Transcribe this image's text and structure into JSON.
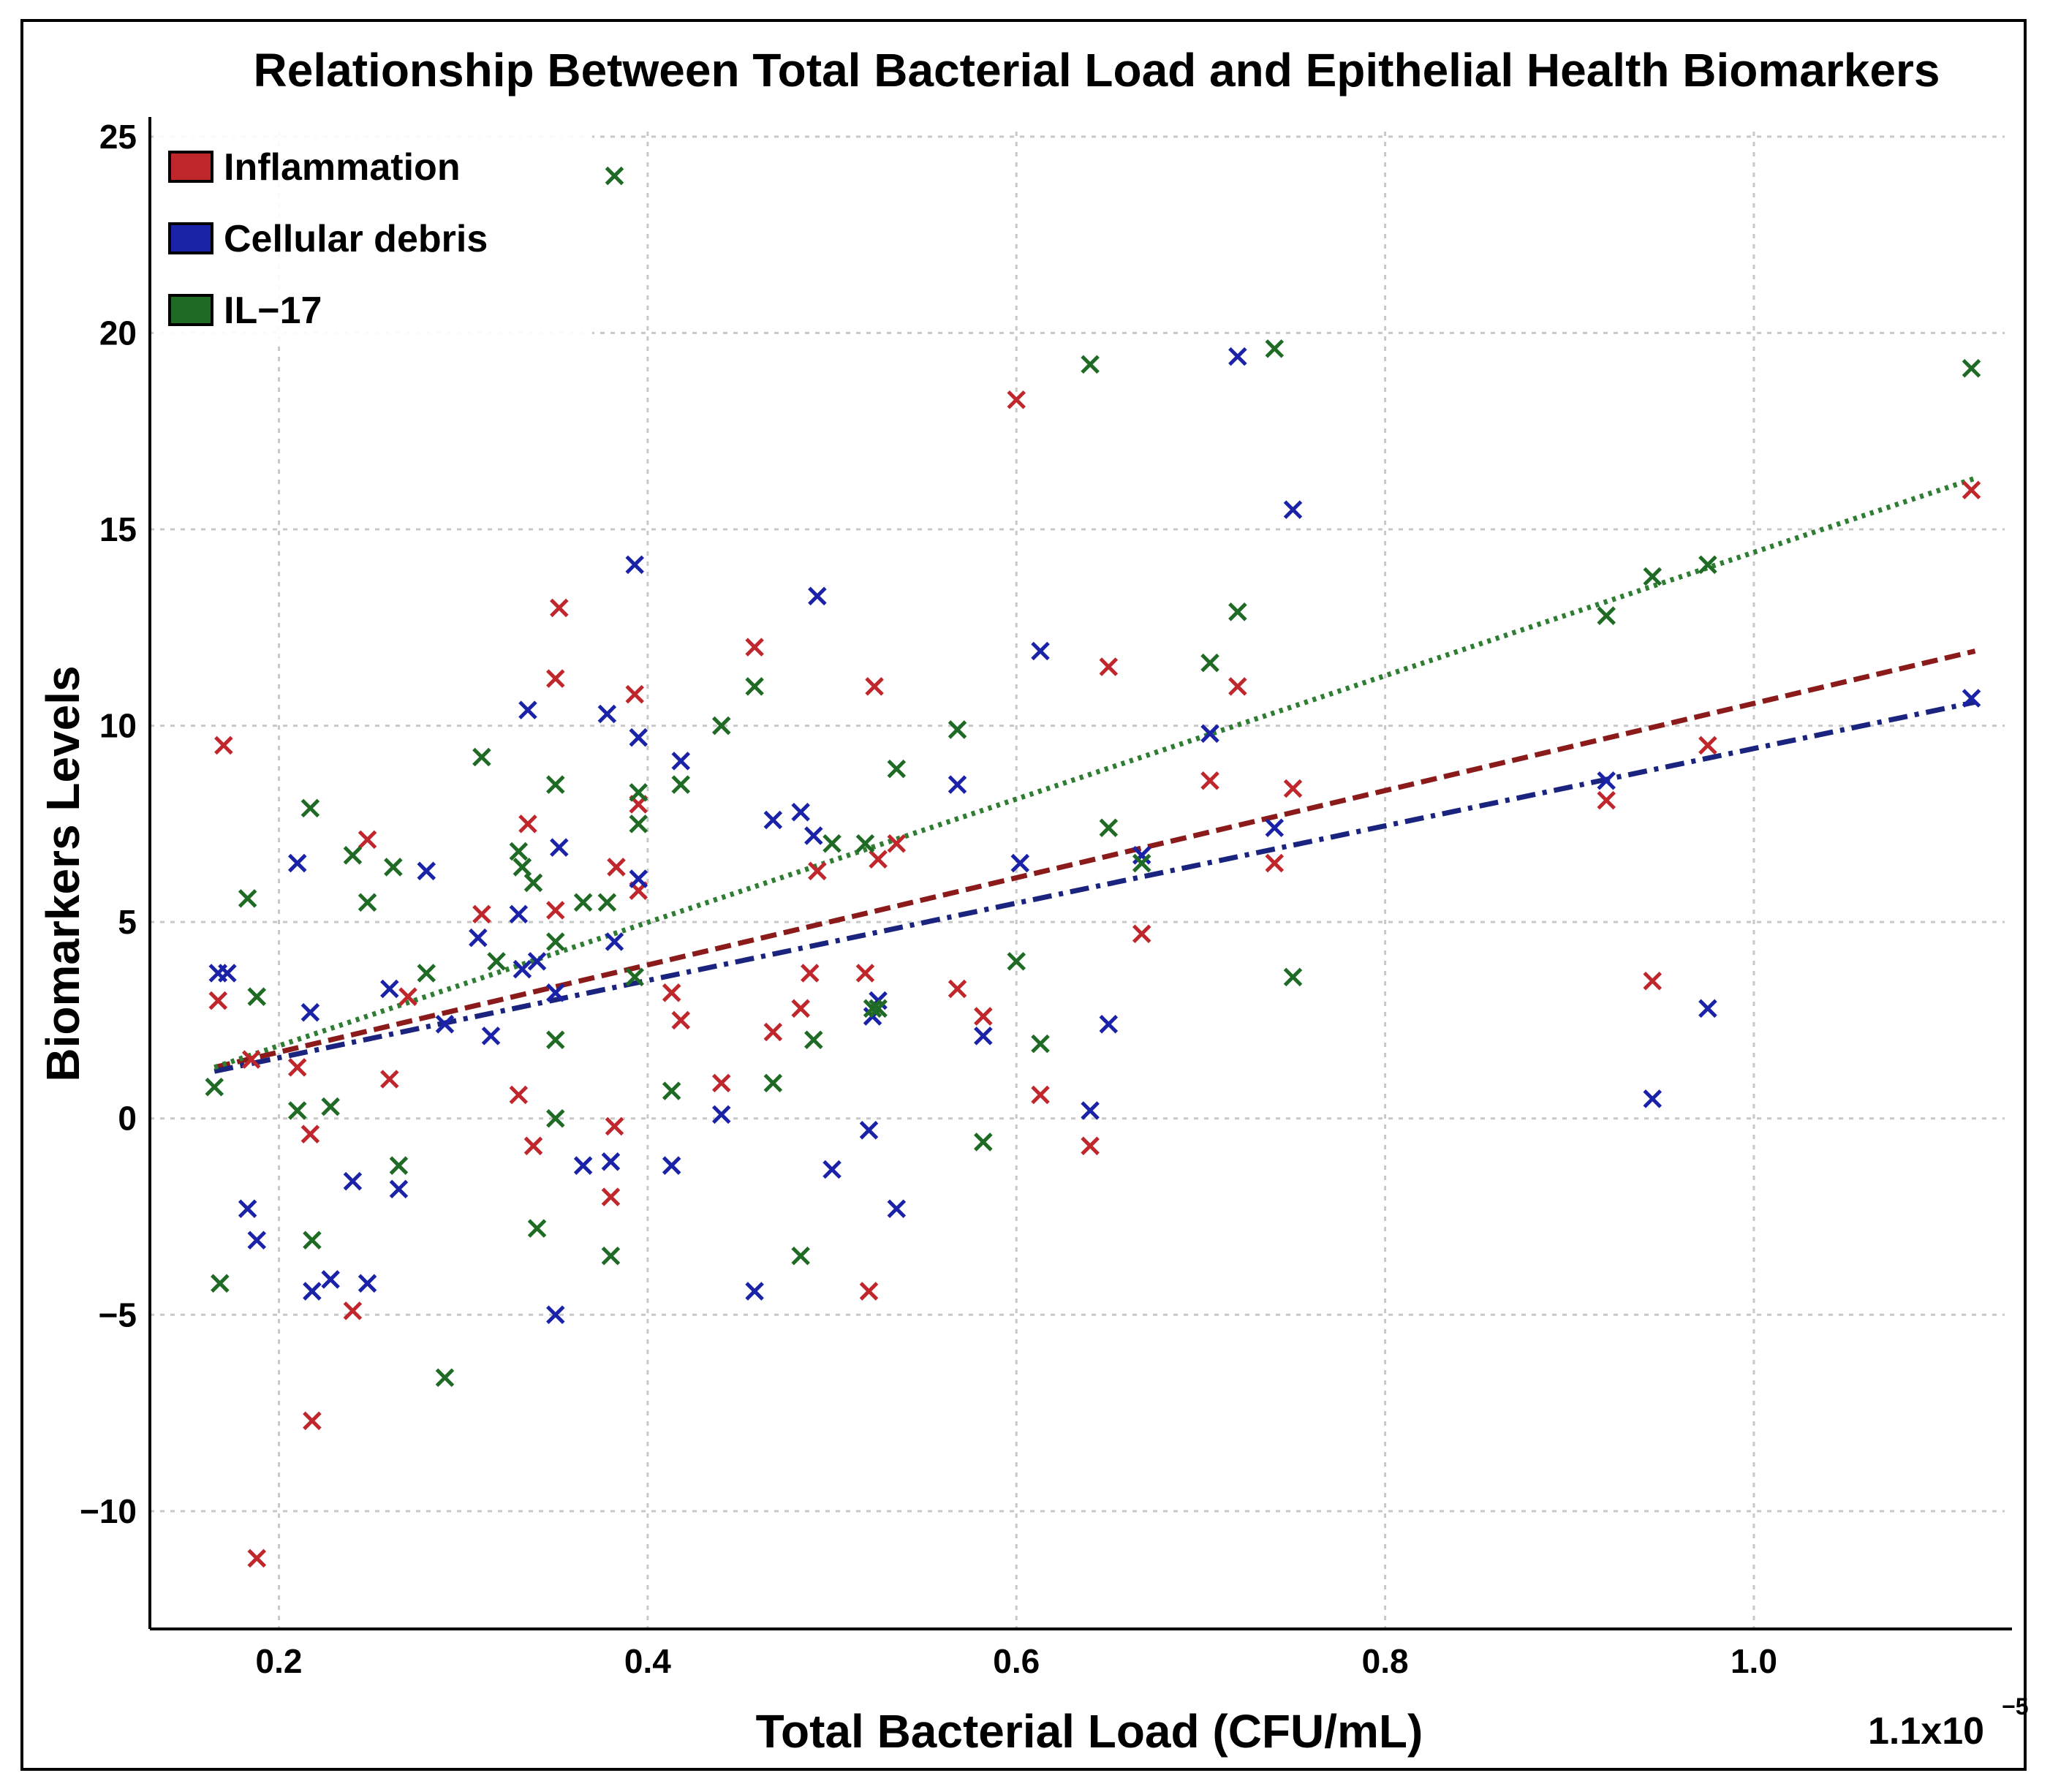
{
  "chart_data": {
    "type": "scatter",
    "title": "Relationship Between Total Bacterial Load and Epithelial Health Biomarkers",
    "xlabel": "Total Bacterial Load (CFU/mL)",
    "ylabel": "Biomarkers Levels",
    "x_scale_note": "1.1x10",
    "x_scale_exponent": "−5",
    "xlim": [
      0.13,
      1.14
    ],
    "ylim": [
      -13,
      25.5
    ],
    "xticks": [
      0.2,
      0.4,
      0.6,
      0.8,
      1.0
    ],
    "xtick_labels": [
      "0.2",
      "0.4",
      "0.6",
      "0.8",
      "1.0"
    ],
    "yticks": [
      25,
      20,
      15,
      10,
      5,
      0,
      -5,
      -10
    ],
    "ytick_labels": [
      "25",
      "20",
      "15",
      "10",
      "5",
      "0",
      "−5",
      "−10"
    ],
    "grid": true,
    "legend_position": "top-left",
    "marker": "x",
    "series": [
      {
        "name": "Inflammation",
        "color": "#c0272d",
        "trend_color": "#8b1a1a",
        "trend_style": "dashed",
        "trend": [
          [
            0.165,
            1.3
          ],
          [
            1.12,
            11.9
          ]
        ],
        "points": [
          [
            0.167,
            3.0
          ],
          [
            0.17,
            9.5
          ],
          [
            0.185,
            1.5
          ],
          [
            0.188,
            -11.2
          ],
          [
            0.21,
            1.3
          ],
          [
            0.217,
            -0.4
          ],
          [
            0.218,
            -7.7
          ],
          [
            0.24,
            -4.9
          ],
          [
            0.248,
            7.1
          ],
          [
            0.26,
            1.0
          ],
          [
            0.27,
            3.1
          ],
          [
            0.31,
            5.2
          ],
          [
            0.33,
            0.6
          ],
          [
            0.335,
            7.5
          ],
          [
            0.338,
            -0.7
          ],
          [
            0.35,
            5.3
          ],
          [
            0.35,
            11.2
          ],
          [
            0.352,
            13.0
          ],
          [
            0.38,
            -2.0
          ],
          [
            0.382,
            -0.2
          ],
          [
            0.383,
            6.4
          ],
          [
            0.393,
            10.8
          ],
          [
            0.395,
            5.8
          ],
          [
            0.395,
            8.0
          ],
          [
            0.413,
            3.2
          ],
          [
            0.418,
            2.5
          ],
          [
            0.44,
            0.9
          ],
          [
            0.458,
            12.0
          ],
          [
            0.468,
            2.2
          ],
          [
            0.483,
            2.8
          ],
          [
            0.488,
            3.7
          ],
          [
            0.492,
            6.3
          ],
          [
            0.518,
            3.7
          ],
          [
            0.52,
            -4.4
          ],
          [
            0.523,
            11.0
          ],
          [
            0.525,
            6.6
          ],
          [
            0.535,
            7.0
          ],
          [
            0.568,
            3.3
          ],
          [
            0.582,
            2.6
          ],
          [
            0.6,
            18.3
          ],
          [
            0.613,
            0.6
          ],
          [
            0.64,
            -0.7
          ],
          [
            0.65,
            11.5
          ],
          [
            0.668,
            4.7
          ],
          [
            0.705,
            8.6
          ],
          [
            0.72,
            11.0
          ],
          [
            0.74,
            6.5
          ],
          [
            0.75,
            8.4
          ],
          [
            0.92,
            8.1
          ],
          [
            0.945,
            3.5
          ],
          [
            0.975,
            9.5
          ],
          [
            1.118,
            16.0
          ]
        ]
      },
      {
        "name": "Cellular debris",
        "color": "#1a23a8",
        "trend_color": "#1a237e",
        "trend_style": "dashdot",
        "trend": [
          [
            0.165,
            1.2
          ],
          [
            1.12,
            10.6
          ]
        ],
        "points": [
          [
            0.167,
            3.7
          ],
          [
            0.172,
            3.7
          ],
          [
            0.183,
            -2.3
          ],
          [
            0.188,
            -3.1
          ],
          [
            0.21,
            6.5
          ],
          [
            0.217,
            2.7
          ],
          [
            0.218,
            -4.4
          ],
          [
            0.228,
            -4.1
          ],
          [
            0.24,
            -1.6
          ],
          [
            0.248,
            -4.2
          ],
          [
            0.26,
            3.3
          ],
          [
            0.265,
            -1.8
          ],
          [
            0.28,
            6.3
          ],
          [
            0.29,
            2.4
          ],
          [
            0.308,
            4.6
          ],
          [
            0.315,
            2.1
          ],
          [
            0.33,
            5.2
          ],
          [
            0.332,
            3.8
          ],
          [
            0.335,
            10.4
          ],
          [
            0.34,
            4.0
          ],
          [
            0.35,
            -5.0
          ],
          [
            0.35,
            3.2
          ],
          [
            0.352,
            6.9
          ],
          [
            0.365,
            -1.2
          ],
          [
            0.378,
            10.3
          ],
          [
            0.38,
            -1.1
          ],
          [
            0.382,
            4.5
          ],
          [
            0.393,
            14.1
          ],
          [
            0.395,
            9.7
          ],
          [
            0.395,
            6.1
          ],
          [
            0.413,
            -1.2
          ],
          [
            0.418,
            9.1
          ],
          [
            0.44,
            0.1
          ],
          [
            0.458,
            -4.4
          ],
          [
            0.468,
            7.6
          ],
          [
            0.483,
            7.8
          ],
          [
            0.49,
            7.2
          ],
          [
            0.492,
            13.3
          ],
          [
            0.5,
            -1.3
          ],
          [
            0.52,
            -0.3
          ],
          [
            0.522,
            2.6
          ],
          [
            0.525,
            3.0
          ],
          [
            0.535,
            -2.3
          ],
          [
            0.568,
            8.5
          ],
          [
            0.582,
            2.1
          ],
          [
            0.602,
            6.5
          ],
          [
            0.613,
            11.9
          ],
          [
            0.64,
            0.2
          ],
          [
            0.65,
            2.4
          ],
          [
            0.668,
            6.7
          ],
          [
            0.705,
            9.8
          ],
          [
            0.72,
            19.4
          ],
          [
            0.74,
            7.4
          ],
          [
            0.75,
            15.5
          ],
          [
            0.92,
            8.6
          ],
          [
            0.945,
            0.5
          ],
          [
            0.975,
            2.8
          ],
          [
            1.118,
            10.7
          ]
        ]
      },
      {
        "name": "IL−17",
        "color": "#1f6b25",
        "trend_color": "#2e7d32",
        "trend_style": "dotted",
        "trend": [
          [
            0.165,
            1.3
          ],
          [
            1.12,
            16.3
          ]
        ],
        "points": [
          [
            0.165,
            0.8
          ],
          [
            0.168,
            -4.2
          ],
          [
            0.183,
            5.6
          ],
          [
            0.188,
            3.1
          ],
          [
            0.21,
            0.2
          ],
          [
            0.217,
            7.9
          ],
          [
            0.218,
            -3.1
          ],
          [
            0.228,
            0.3
          ],
          [
            0.24,
            6.7
          ],
          [
            0.248,
            5.5
          ],
          [
            0.262,
            6.4
          ],
          [
            0.265,
            -1.2
          ],
          [
            0.28,
            3.7
          ],
          [
            0.29,
            -6.6
          ],
          [
            0.31,
            9.2
          ],
          [
            0.318,
            4.0
          ],
          [
            0.33,
            6.8
          ],
          [
            0.332,
            6.4
          ],
          [
            0.338,
            6.0
          ],
          [
            0.34,
            -2.8
          ],
          [
            0.35,
            0.0
          ],
          [
            0.35,
            2.0
          ],
          [
            0.35,
            4.5
          ],
          [
            0.35,
            8.5
          ],
          [
            0.365,
            5.5
          ],
          [
            0.378,
            5.5
          ],
          [
            0.38,
            -3.5
          ],
          [
            0.382,
            24.0
          ],
          [
            0.393,
            3.6
          ],
          [
            0.395,
            7.5
          ],
          [
            0.395,
            8.3
          ],
          [
            0.413,
            0.7
          ],
          [
            0.418,
            8.5
          ],
          [
            0.44,
            10.0
          ],
          [
            0.458,
            11.0
          ],
          [
            0.468,
            0.9
          ],
          [
            0.483,
            -3.5
          ],
          [
            0.49,
            2.0
          ],
          [
            0.5,
            7.0
          ],
          [
            0.518,
            7.0
          ],
          [
            0.522,
            2.8
          ],
          [
            0.525,
            2.8
          ],
          [
            0.535,
            8.9
          ],
          [
            0.568,
            9.9
          ],
          [
            0.582,
            -0.6
          ],
          [
            0.6,
            4.0
          ],
          [
            0.613,
            1.9
          ],
          [
            0.64,
            19.2
          ],
          [
            0.65,
            7.4
          ],
          [
            0.668,
            6.5
          ],
          [
            0.705,
            11.6
          ],
          [
            0.72,
            12.9
          ],
          [
            0.74,
            19.6
          ],
          [
            0.75,
            3.6
          ],
          [
            0.92,
            12.8
          ],
          [
            0.945,
            13.8
          ],
          [
            0.975,
            14.1
          ],
          [
            1.118,
            19.1
          ]
        ]
      }
    ]
  }
}
